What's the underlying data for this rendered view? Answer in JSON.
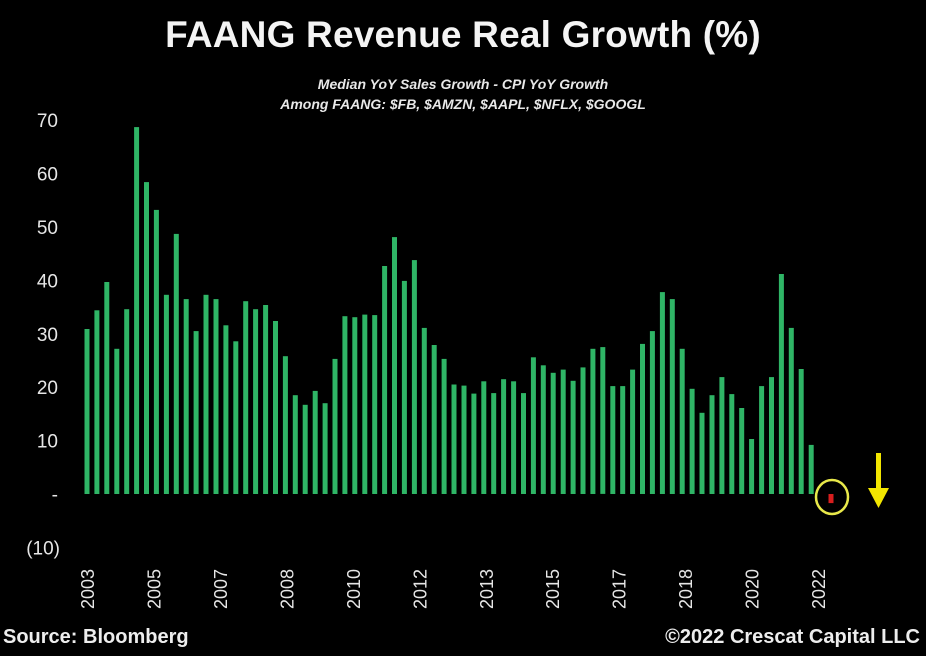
{
  "colors": {
    "background": "#000000",
    "bar_positive": "#2fb566",
    "bar_negative": "#d81e1e",
    "highlight": "#e8e84a",
    "arrow": "#f2e600",
    "text": "#ececec"
  },
  "footer": {
    "source": "Source: Bloomberg",
    "credit": "©2022 Crescat Capital LLC"
  },
  "annotations": {
    "highlight_circle_icon": "circle-highlight-icon",
    "arrow_icon": "arrow-down-icon"
  },
  "chart_data": {
    "type": "bar",
    "title": "FAANG Revenue Real Growth (%)",
    "subtitle": [
      "Median YoY Sales Growth - CPI YoY Growth",
      "Among FAANG: $FB, $AMZN, $AAPL, $NFLX, $GOOGL"
    ],
    "xlabel": "",
    "ylabel": "",
    "ylim": [
      -10,
      70
    ],
    "yticks": [
      70,
      60,
      50,
      40,
      30,
      20,
      10,
      0,
      -10
    ],
    "ytick_labels": [
      "70",
      "60",
      "50",
      "40",
      "30",
      "20",
      "10",
      "-",
      "(10)"
    ],
    "xtick_labels": [
      "2003",
      "2005",
      "2007",
      "2008",
      "2010",
      "2012",
      "2013",
      "2015",
      "2017",
      "2018",
      "2020",
      "2022"
    ],
    "xtick_bar_positions": [
      0,
      6.7,
      13.4,
      20.1,
      26.8,
      33.5,
      40.2,
      46.9,
      53.6,
      60.3,
      67.0,
      73.7
    ],
    "grid": false,
    "legend": "none",
    "values": [
      30.9,
      34.4,
      39.7,
      27.2,
      34.6,
      68.7,
      58.4,
      53.2,
      37.3,
      48.7,
      36.5,
      30.5,
      37.3,
      36.5,
      31.6,
      28.6,
      36.1,
      34.6,
      35.4,
      32.4,
      25.8,
      18.5,
      16.7,
      19.3,
      17.0,
      25.3,
      33.3,
      33.1,
      33.6,
      33.5,
      42.7,
      48.1,
      39.9,
      43.8,
      31.1,
      27.9,
      25.3,
      20.5,
      20.3,
      18.8,
      21.1,
      18.9,
      21.5,
      21.1,
      18.9,
      25.6,
      24.1,
      22.7,
      23.3,
      21.2,
      23.7,
      27.2,
      27.5,
      20.2,
      20.2,
      23.3,
      28.1,
      30.5,
      37.8,
      36.5,
      27.2,
      19.7,
      15.2,
      18.5,
      21.9,
      18.7,
      16.1,
      10.3,
      20.2,
      21.9,
      41.2,
      31.1,
      23.4,
      9.2,
      0,
      -1.7
    ],
    "highlighted_index": 75
  }
}
